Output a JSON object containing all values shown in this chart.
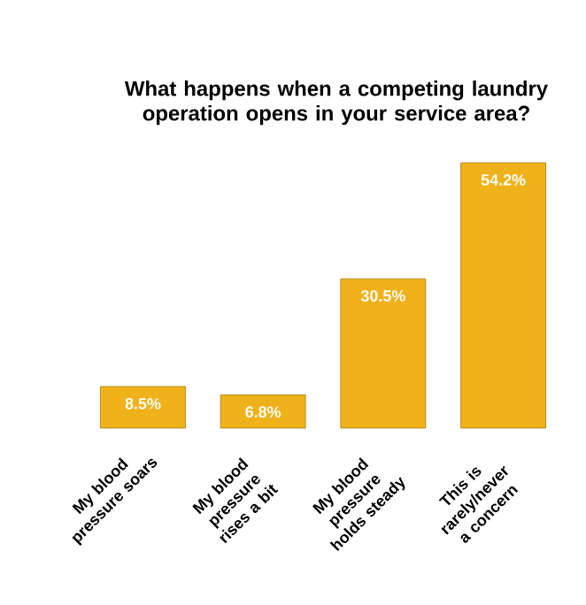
{
  "chart_data": {
    "type": "bar",
    "title": "What happens when a competing laundry operation opens in your service area?",
    "categories": [
      "My blood pressure soars",
      "My blood pressure rises a bit",
      "My blood pressure holds steady",
      "This is rarely/never a concern"
    ],
    "values": [
      8.5,
      6.8,
      30.5,
      54.2
    ],
    "value_labels": [
      "8.5%",
      "6.8%",
      "30.5%",
      "54.2%"
    ],
    "color": "#f0b21a",
    "ylim": [
      0,
      54.2
    ]
  }
}
